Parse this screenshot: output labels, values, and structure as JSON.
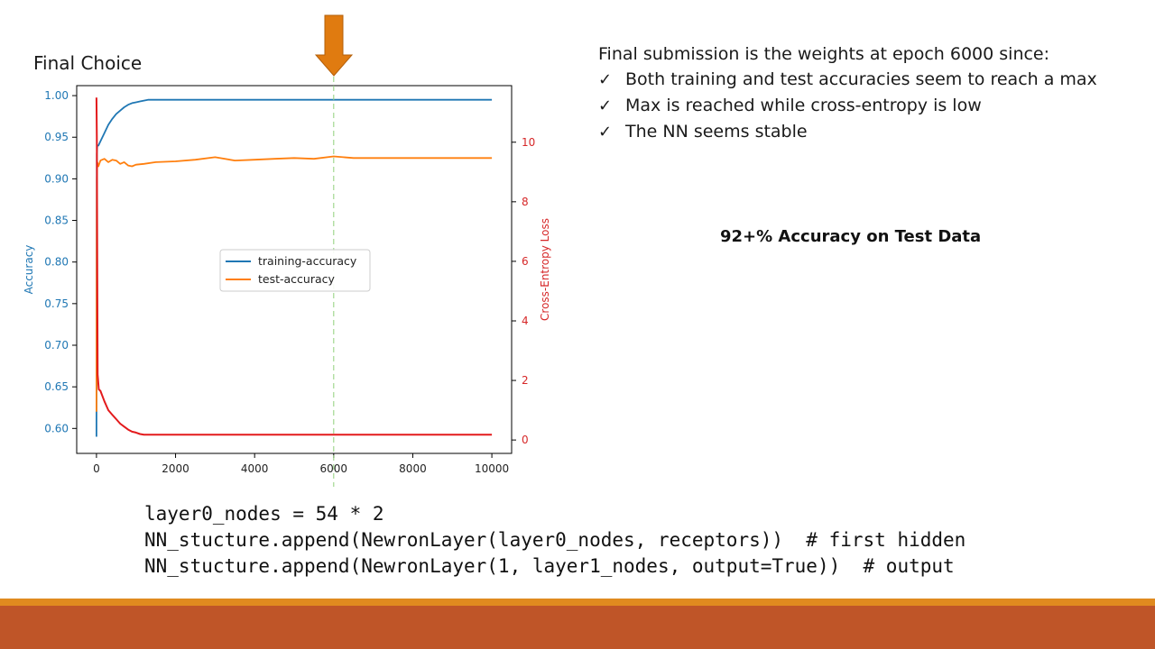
{
  "slide": {
    "title": "Final Choice",
    "notes_heading": "Final submission is the weights at epoch 6000 since:",
    "bullets": [
      "Both training and test accuracies seem to reach a max",
      "Max is reached while cross-entropy is low",
      "The NN seems stable"
    ],
    "check_glyph": "✓",
    "highlight": "92+% Accuracy on Test Data",
    "code_lines": [
      "layer0_nodes = 54 * 2",
      "NN_stucture.append(NewronLayer(layer0_nodes, receptors))  # first hidden",
      "NN_stucture.append(NewronLayer(1, layer1_nodes, output=True))  # output"
    ]
  },
  "chart_data": {
    "type": "line",
    "xlabel": "",
    "ylabel": "Accuracy",
    "y2label": "Cross-Entropy Loss",
    "xlim": [
      -500,
      10500
    ],
    "ylim": [
      0.57,
      1.012
    ],
    "y2lim": [
      -0.45,
      11.9
    ],
    "xticks": [
      0,
      2000,
      4000,
      6000,
      8000,
      10000
    ],
    "yticks": [
      0.6,
      0.65,
      0.7,
      0.75,
      0.8,
      0.85,
      0.9,
      0.95,
      1.0
    ],
    "y2ticks": [
      0,
      2,
      4,
      6,
      8,
      10
    ],
    "marker_epoch": 6000,
    "legend_placement": "center",
    "colors": {
      "training": "#1f77b4",
      "test": "#ff7f0e",
      "loss": "#e31a1c",
      "marker": "#8fcf7a",
      "arrow": "#e07b10",
      "axis_left": "#1f77b4",
      "axis_right": "#d62728"
    },
    "series": [
      {
        "name": "training-accuracy",
        "axis": "left",
        "x": [
          0,
          10,
          20,
          50,
          100,
          200,
          300,
          400,
          500,
          600,
          700,
          800,
          900,
          1000,
          1100,
          1200,
          1300,
          1500,
          2000,
          3000,
          4000,
          5000,
          6000,
          7000,
          8000,
          9000,
          10000
        ],
        "y": [
          0.59,
          0.93,
          0.94,
          0.94,
          0.945,
          0.955,
          0.965,
          0.972,
          0.978,
          0.982,
          0.986,
          0.989,
          0.991,
          0.992,
          0.993,
          0.994,
          0.995,
          0.995,
          0.995,
          0.995,
          0.995,
          0.995,
          0.995,
          0.995,
          0.995,
          0.995,
          0.995
        ]
      },
      {
        "name": "test-accuracy",
        "axis": "left",
        "x": [
          0,
          10,
          20,
          50,
          100,
          200,
          300,
          400,
          500,
          600,
          700,
          800,
          900,
          1000,
          1200,
          1500,
          2000,
          2500,
          3000,
          3500,
          4000,
          4500,
          5000,
          5500,
          6000,
          6500,
          7000,
          8000,
          9000,
          10000
        ],
        "y": [
          0.62,
          0.9,
          0.92,
          0.915,
          0.922,
          0.924,
          0.92,
          0.923,
          0.922,
          0.918,
          0.92,
          0.916,
          0.915,
          0.917,
          0.918,
          0.92,
          0.921,
          0.923,
          0.926,
          0.922,
          0.923,
          0.924,
          0.925,
          0.924,
          0.927,
          0.925,
          0.925,
          0.925,
          0.925,
          0.925
        ]
      },
      {
        "name": "",
        "axis": "right",
        "x": [
          0,
          10,
          30,
          60,
          100,
          200,
          300,
          400,
          500,
          600,
          700,
          800,
          900,
          1000,
          1100,
          1200,
          1300,
          2000,
          4000,
          6000,
          8000,
          10000
        ],
        "y": [
          11.5,
          10.2,
          2.2,
          1.7,
          1.65,
          1.3,
          1.0,
          0.85,
          0.7,
          0.55,
          0.45,
          0.35,
          0.28,
          0.25,
          0.2,
          0.18,
          0.18,
          0.18,
          0.18,
          0.18,
          0.18,
          0.18
        ]
      }
    ]
  }
}
